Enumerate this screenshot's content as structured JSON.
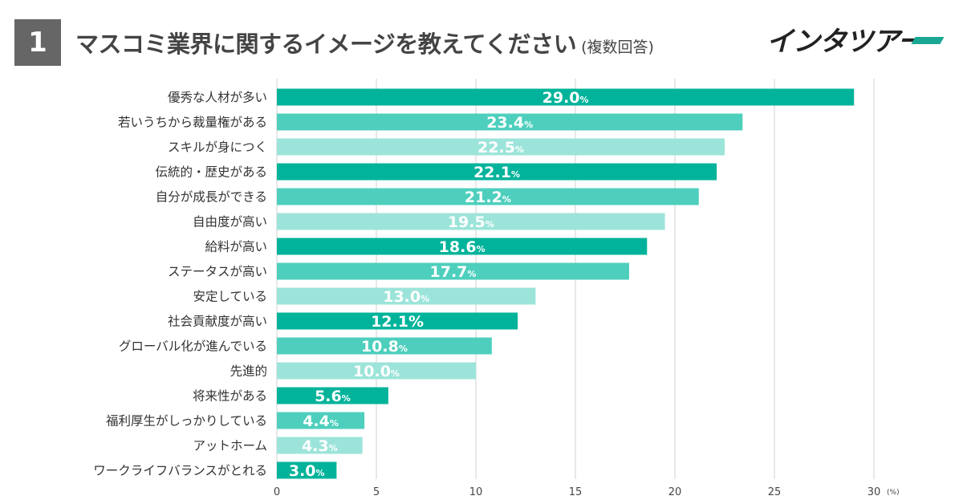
{
  "header": {
    "number": "1",
    "title": "マスコミ業界に関するイメージを教えてください",
    "subtitle": "(複数回答)"
  },
  "logo": {
    "text": "インタツアー",
    "accent_color": "#1aa894"
  },
  "chart_data": {
    "type": "bar",
    "orientation": "horizontal",
    "categories": [
      "優秀な人材が多い",
      "若いうちから裁量権がある",
      "スキルが身につく",
      "伝統的・歴史がある",
      "自分が成長ができる",
      "自由度が高い",
      "給料が高い",
      "ステータスが高い",
      "安定している",
      "社会貢献度が高い",
      "グローバル化が進んでいる",
      "先進的",
      "将来性がある",
      "福利厚生がしっかりしている",
      "アットホーム",
      "ワークライフバランスがとれる"
    ],
    "values": [
      29.0,
      23.4,
      22.5,
      22.1,
      21.2,
      19.5,
      18.6,
      17.7,
      13.0,
      12.1,
      10.8,
      10.0,
      5.6,
      4.4,
      4.3,
      3.0
    ],
    "value_labels": [
      "29.0",
      "23.4",
      "22.5",
      "22.1",
      "21.2",
      "19.5",
      "18.6",
      "17.7",
      "13.0",
      "12.1%",
      "10.8",
      "10.0",
      "5.6",
      "4.4",
      "4.3",
      "3.0"
    ],
    "value_units": [
      "%",
      "%",
      "%",
      "%",
      "%",
      "%",
      "%",
      "%",
      "%",
      "",
      "%",
      "%",
      "%",
      "%",
      "%",
      "%"
    ],
    "xticks": [
      "0",
      "5",
      "10",
      "15",
      "20",
      "25",
      "30"
    ],
    "xunit": "(%)",
    "xlim": [
      0,
      30
    ],
    "grid": true,
    "colors": [
      "#00b39a",
      "#4ecfbd",
      "#9ce4da"
    ]
  }
}
